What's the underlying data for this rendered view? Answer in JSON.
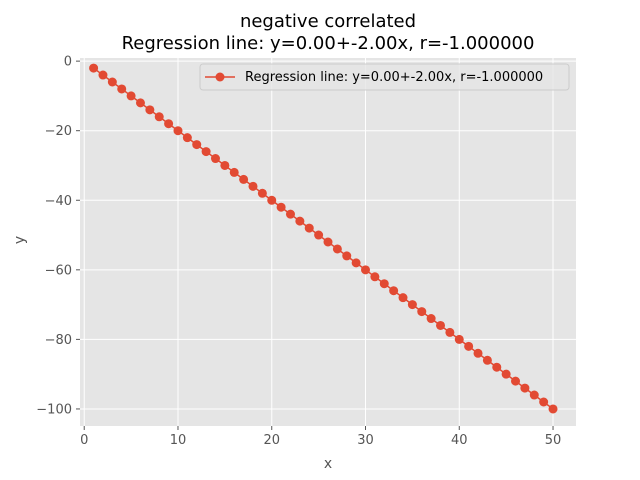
{
  "chart_data": {
    "type": "line",
    "title_line1": "negative correlated",
    "title_line2": "Regression line: y=0.00+-2.00x, r=-1.000000",
    "xlabel": "x",
    "ylabel": "y",
    "xlim": [
      -0.45,
      52.45
    ],
    "ylim": [
      -104.9,
      0.9
    ],
    "xticks": [
      0,
      10,
      20,
      30,
      40,
      50
    ],
    "yticks": [
      0,
      -20,
      -40,
      -60,
      -80,
      -100
    ],
    "xtick_labels": [
      "0",
      "10",
      "20",
      "30",
      "40",
      "50"
    ],
    "ytick_labels": [
      "0",
      "−20",
      "−40",
      "−60",
      "−80",
      "−100"
    ],
    "grid": true,
    "legend_position": "top-right",
    "series": [
      {
        "name": "Regression line: y=0.00+-2.00x, r=-1.000000",
        "color": "#E24A33",
        "marker": "circle",
        "x": [
          1,
          2,
          3,
          4,
          5,
          6,
          7,
          8,
          9,
          10,
          11,
          12,
          13,
          14,
          15,
          16,
          17,
          18,
          19,
          20,
          21,
          22,
          23,
          24,
          25,
          26,
          27,
          28,
          29,
          30,
          31,
          32,
          33,
          34,
          35,
          36,
          37,
          38,
          39,
          40,
          41,
          42,
          43,
          44,
          45,
          46,
          47,
          48,
          49,
          50
        ],
        "y": [
          -2,
          -4,
          -6,
          -8,
          -10,
          -12,
          -14,
          -16,
          -18,
          -20,
          -22,
          -24,
          -26,
          -28,
          -30,
          -32,
          -34,
          -36,
          -38,
          -40,
          -42,
          -44,
          -46,
          -48,
          -50,
          -52,
          -54,
          -56,
          -58,
          -60,
          -62,
          -64,
          -66,
          -68,
          -70,
          -72,
          -74,
          -76,
          -78,
          -80,
          -82,
          -84,
          -86,
          -88,
          -90,
          -92,
          -94,
          -96,
          -98,
          -100
        ]
      }
    ]
  },
  "colors": {
    "plot_background": "#E5E5E5",
    "grid": "#FFFFFF",
    "tick": "#555555"
  }
}
